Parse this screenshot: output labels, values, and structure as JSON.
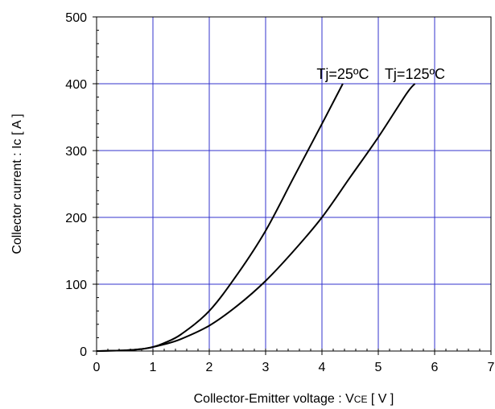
{
  "chart_data": {
    "type": "line",
    "title": "",
    "xlabel": "Collector-Emitter voltage : V",
    "xlabel_sub": "CE",
    "xlabel_unit": " [ V ]",
    "ylabel": "Collector current : Ic [ A ]",
    "xlim": [
      0,
      7
    ],
    "ylim": [
      0,
      500
    ],
    "x_ticks": [
      0,
      1,
      2,
      3,
      4,
      5,
      6,
      7
    ],
    "y_ticks": [
      0,
      100,
      200,
      300,
      400,
      500
    ],
    "grid": true,
    "colors": {
      "grid": "#3333cc",
      "axis": "#000000",
      "series": "#000000"
    },
    "series": [
      {
        "name": "Tj=25ºC",
        "x": [
          0,
          0.5,
          0.8,
          1.0,
          1.2,
          1.5,
          2.0,
          2.5,
          3.0,
          3.5,
          4.0,
          4.37
        ],
        "y": [
          0,
          1,
          3,
          6,
          12,
          25,
          60,
          115,
          180,
          260,
          340,
          400
        ]
      },
      {
        "name": "Tj=125ºC",
        "x": [
          0,
          0.5,
          0.8,
          1.0,
          1.2,
          1.5,
          2.0,
          2.5,
          3.0,
          3.5,
          4.0,
          4.5,
          5.0,
          5.5,
          5.65
        ],
        "y": [
          0,
          1,
          3,
          6,
          10,
          18,
          38,
          68,
          105,
          150,
          200,
          260,
          320,
          385,
          400
        ]
      }
    ]
  }
}
